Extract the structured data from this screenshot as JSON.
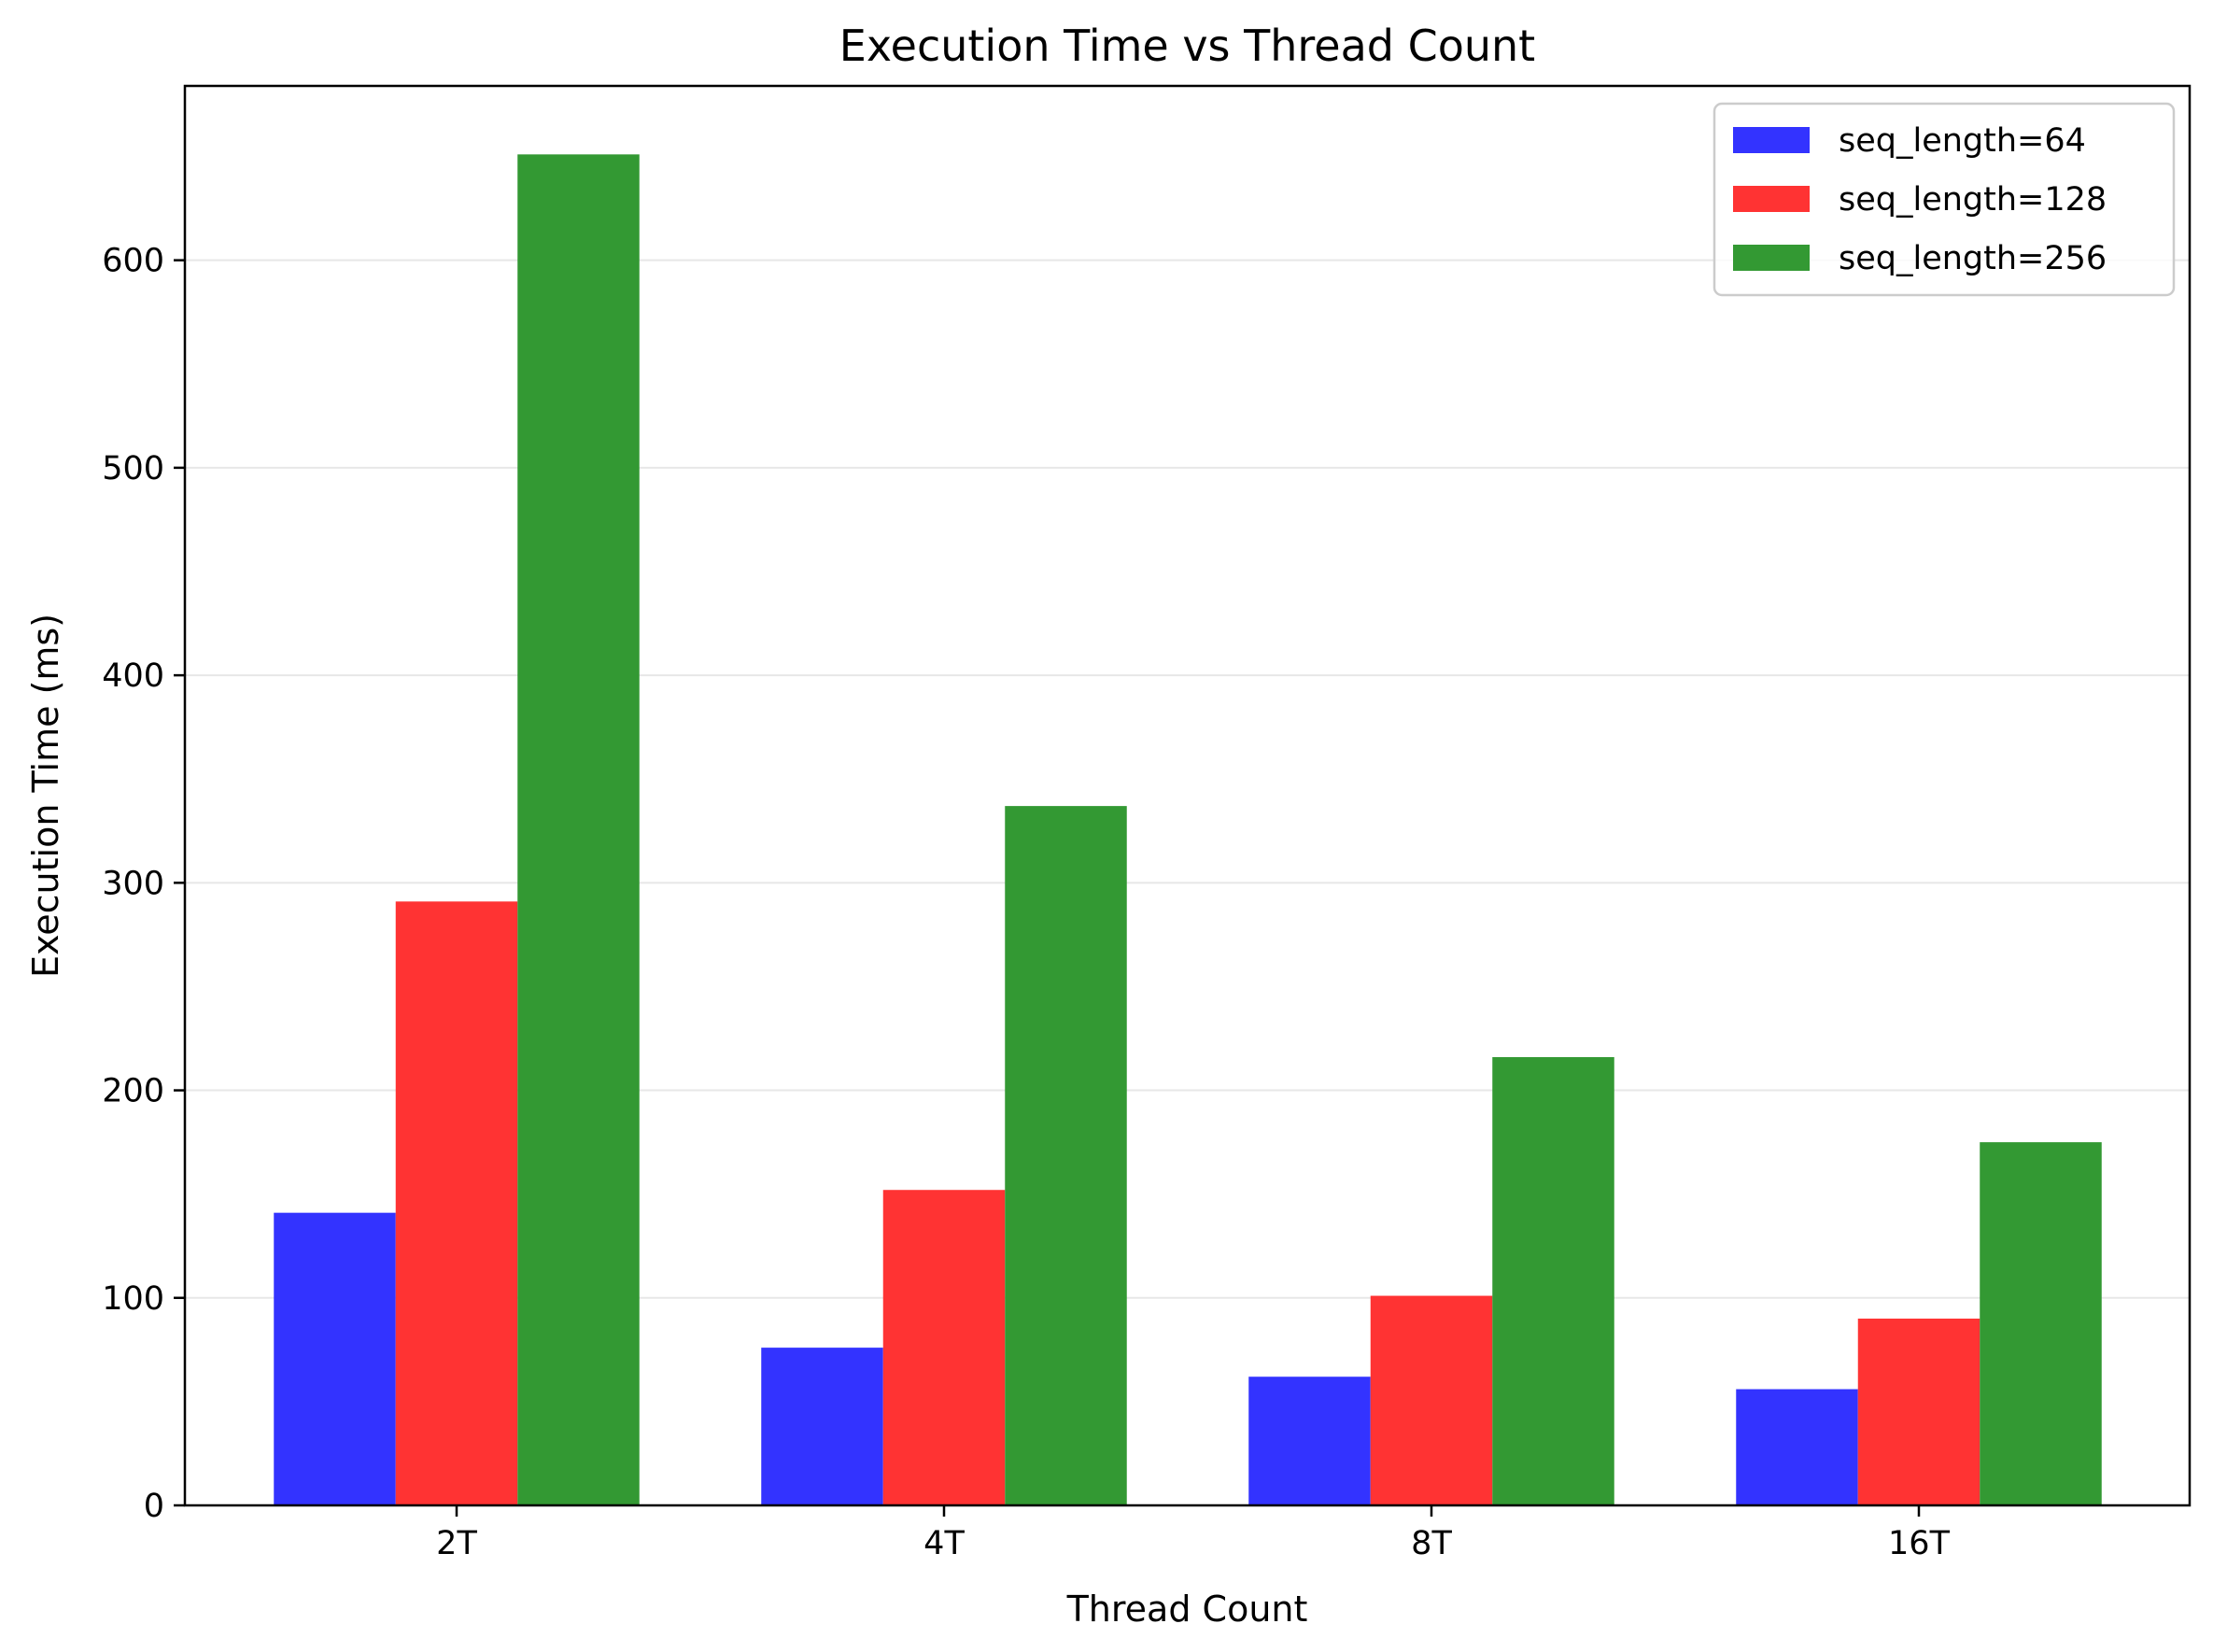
{
  "chart_data": {
    "type": "bar",
    "title": "Execution Time vs Thread Count",
    "xlabel": "Thread Count",
    "ylabel": "Execution Time (ms)",
    "categories": [
      "2T",
      "4T",
      "8T",
      "16T"
    ],
    "series": [
      {
        "name": "seq_length=64",
        "color": "#3333ff",
        "values": [
          141,
          76,
          62,
          56
        ]
      },
      {
        "name": "seq_length=128",
        "color": "#ff3333",
        "values": [
          291,
          152,
          101,
          90
        ]
      },
      {
        "name": "seq_length=256",
        "color": "#339933",
        "values": [
          651,
          337,
          216,
          175
        ]
      }
    ],
    "ylim": [
      0,
      684
    ],
    "yticks": [
      0,
      100,
      200,
      300,
      400,
      500,
      600
    ],
    "grid": "y",
    "legend_position": "top-right"
  }
}
